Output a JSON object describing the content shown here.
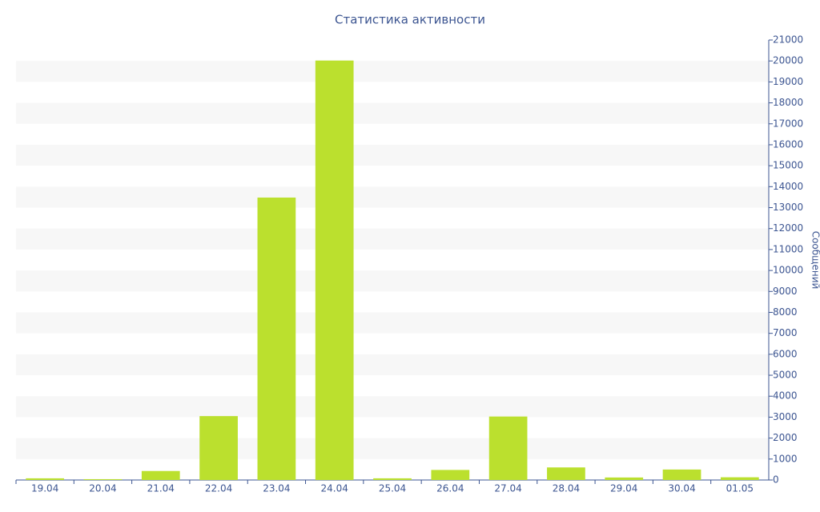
{
  "chart_data": {
    "type": "bar",
    "title": "Статистика активности",
    "y_label": "Сообщений",
    "categories": [
      "19.04",
      "20.04",
      "21.04",
      "22.04",
      "23.04",
      "24.04",
      "25.04",
      "26.04",
      "27.04",
      "28.04",
      "29.04",
      "30.04",
      "01.05"
    ],
    "values": [
      80,
      40,
      430,
      3050,
      13480,
      20020,
      80,
      480,
      3030,
      600,
      120,
      500,
      130
    ],
    "color": "#bbe02e",
    "ylim": [
      0,
      21000
    ],
    "yticks": [
      0,
      1000,
      2000,
      3000,
      4000,
      5000,
      6000,
      7000,
      8000,
      9000,
      10000,
      11000,
      12000,
      13000,
      14000,
      15000,
      16000,
      17000,
      18000,
      19000,
      20000,
      21000
    ],
    "grid": true
  }
}
